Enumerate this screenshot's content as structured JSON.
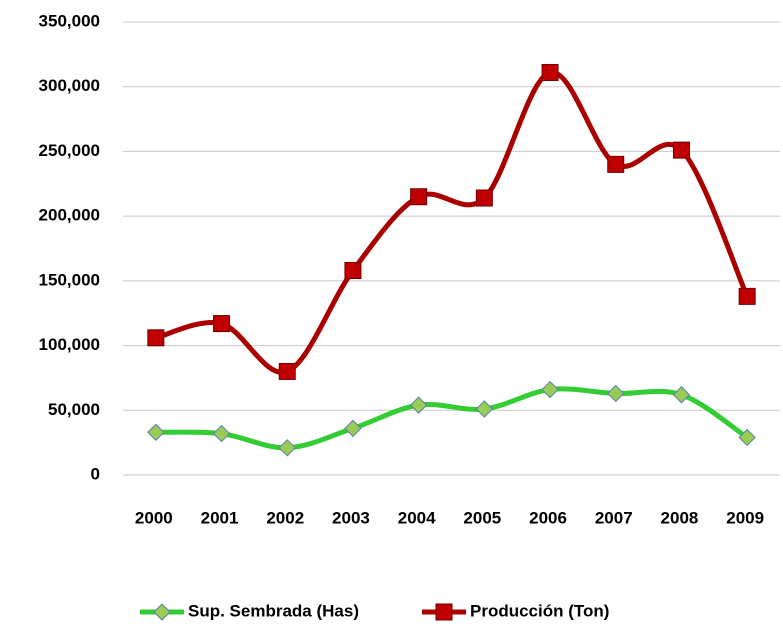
{
  "chart_data": {
    "type": "line",
    "smooth": true,
    "grid": true,
    "legend": "bottom",
    "categories": [
      "2000",
      "2001",
      "2002",
      "2003",
      "2004",
      "2005",
      "2006",
      "2007",
      "2008",
      "2009"
    ],
    "series": [
      {
        "name": "Sup. Sembrada (Has)",
        "color": "#33cc33",
        "marker": "diamond",
        "marker_color": "#99cc55",
        "values": [
          33000,
          32000,
          21000,
          36000,
          54000,
          51000,
          66000,
          63000,
          62000,
          29000
        ]
      },
      {
        "name": "Producción (Ton)",
        "color": "#aa0000",
        "marker": "square",
        "marker_color": "#c00000",
        "values": [
          106000,
          117000,
          80000,
          158000,
          215000,
          214000,
          311000,
          240000,
          251000,
          138000
        ]
      }
    ],
    "ylim": [
      0,
      350000
    ],
    "yticks": [
      0,
      {
        "value": 50000,
        "label": "50,000"
      },
      {
        "value": 100000,
        "label": "100,000"
      },
      {
        "value": 150000,
        "label": "150,000"
      },
      {
        "value": 200000,
        "label": "200,000"
      },
      {
        "value": 250000,
        "label": "250,000"
      },
      {
        "value": 300000,
        "label": "300,000"
      },
      {
        "value": 350000,
        "label": "350,000"
      }
    ]
  }
}
